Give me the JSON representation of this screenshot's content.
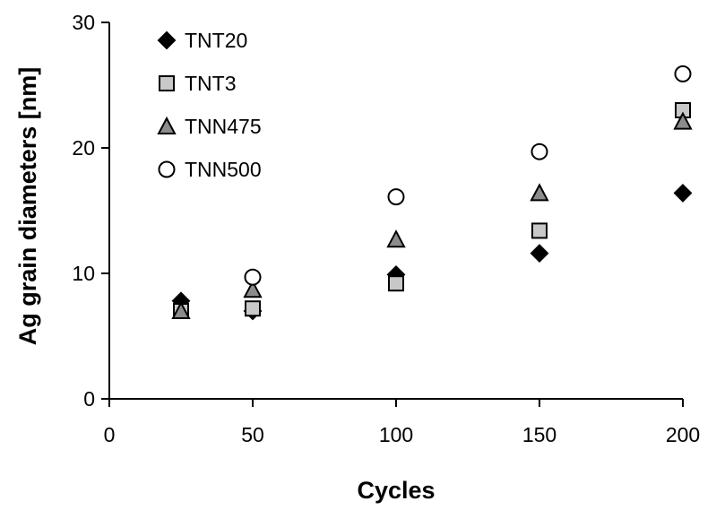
{
  "chart_data": {
    "type": "scatter",
    "xlabel": "Cycles",
    "ylabel": "Ag grain diameters [nm]",
    "xlim": [
      0,
      200
    ],
    "ylim": [
      0,
      30
    ],
    "xticks": [
      0,
      50,
      100,
      150,
      200
    ],
    "yticks": [
      0,
      10,
      20,
      30
    ],
    "grid": false,
    "legend_position": "top-left",
    "series": [
      {
        "name": "TNT20",
        "marker": "diamond",
        "fill": "#000000",
        "stroke": "#000000",
        "points": [
          [
            25,
            7.8
          ],
          [
            50,
            7.0
          ],
          [
            100,
            9.9
          ],
          [
            150,
            11.6
          ],
          [
            200,
            16.4
          ]
        ]
      },
      {
        "name": "TNT3",
        "marker": "square",
        "fill": "#c8c8c8",
        "stroke": "#000000",
        "points": [
          [
            25,
            7.0
          ],
          [
            50,
            7.2
          ],
          [
            100,
            9.2
          ],
          [
            150,
            13.4
          ],
          [
            200,
            23.0
          ]
        ]
      },
      {
        "name": "TNN475",
        "marker": "triangle",
        "fill": "#8c8c8c",
        "stroke": "#000000",
        "points": [
          [
            25,
            7.0
          ],
          [
            50,
            8.7
          ],
          [
            100,
            12.7
          ],
          [
            150,
            16.4
          ],
          [
            200,
            22.1
          ]
        ]
      },
      {
        "name": "TNN500",
        "marker": "circle",
        "fill": "#ffffff",
        "stroke": "#000000",
        "points": [
          [
            50,
            9.7
          ],
          [
            100,
            16.1
          ],
          [
            150,
            19.7
          ],
          [
            200,
            25.9
          ]
        ]
      }
    ]
  }
}
